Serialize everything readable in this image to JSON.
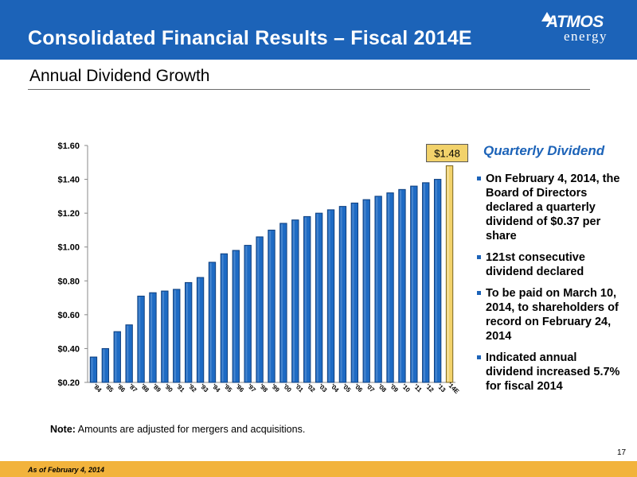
{
  "header": {
    "title": "Consolidated Financial Results – Fiscal 2014E",
    "logo_main": "ATMOS",
    "logo_sub": "energy"
  },
  "subtitle": "Annual Dividend Growth",
  "chart_data": {
    "type": "bar",
    "categories": [
      "'84",
      "'85",
      "'86",
      "'87",
      "'88",
      "'89",
      "'90",
      "'91",
      "'92",
      "'93",
      "'94",
      "'95",
      "'96",
      "'97",
      "'98",
      "'99",
      "'00",
      "'01",
      "'02",
      "'03",
      "'04",
      "'05",
      "'06",
      "'07",
      "'08",
      "'09",
      "'10",
      "'11",
      "'12",
      "'13",
      "'14E"
    ],
    "values": [
      0.35,
      0.4,
      0.5,
      0.54,
      0.71,
      0.73,
      0.74,
      0.75,
      0.79,
      0.82,
      0.91,
      0.96,
      0.98,
      1.01,
      1.06,
      1.1,
      1.14,
      1.16,
      1.18,
      1.2,
      1.22,
      1.24,
      1.26,
      1.28,
      1.3,
      1.32,
      1.34,
      1.36,
      1.38,
      1.4,
      1.48
    ],
    "yticks": [
      "$0.20",
      "$0.40",
      "$0.60",
      "$0.80",
      "$1.00",
      "$1.20",
      "$1.40",
      "$1.60"
    ],
    "ylim": [
      0.2,
      1.6
    ],
    "highlight_label": "$1.48",
    "highlight_index": 30,
    "colors": {
      "bar": "#1e6bc4",
      "bar_dark": "#0f3f7e",
      "highlight": "#f2d26b",
      "highlight_edge": "#7a6420"
    },
    "grid": false
  },
  "sidebar": {
    "heading": "Quarterly Dividend",
    "bullets": [
      "On February 4, 2014, the Board of Directors declared a quarterly dividend of $0.37 per share",
      "121st consecutive dividend declared",
      "To be paid on March 10, 2014, to shareholders of record on February 24, 2014",
      "Indicated annual dividend increased 5.7% for fiscal 2014"
    ]
  },
  "note": {
    "label": "Note:",
    "text": " Amounts are adjusted for mergers and acquisitions."
  },
  "page_number": "17",
  "footer": "As of February 4, 2014",
  "colors": {
    "brand_blue": "#1c63b8",
    "footer_gold": "#f2b33c"
  }
}
